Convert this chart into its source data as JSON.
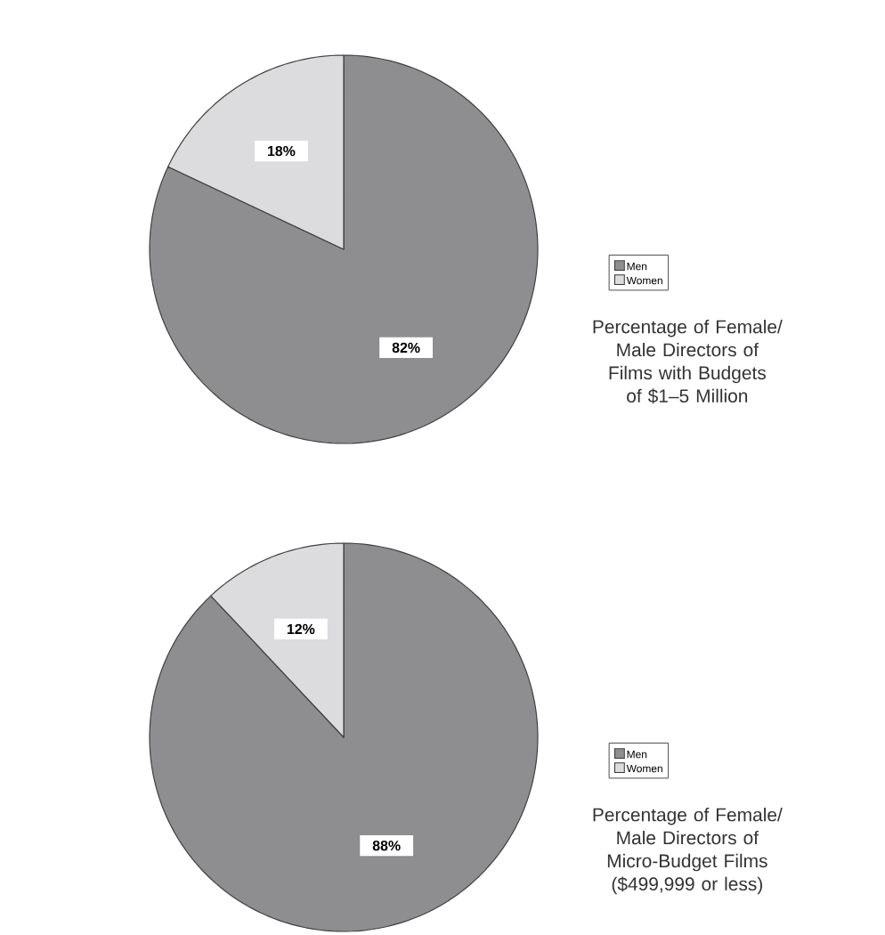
{
  "chart_data": [
    {
      "type": "pie",
      "title": "Percentage of Female/ Male Directors of Films with Budgets of $1–5 Million",
      "categories": [
        "Men",
        "Women"
      ],
      "values": [
        82,
        18
      ],
      "colors": [
        "#8e8e90",
        "#dcdcde"
      ],
      "value_labels": [
        "82%",
        "18%"
      ],
      "legend": "right"
    },
    {
      "type": "pie",
      "title": "Percentage of Female/ Male Directors of Micro-Budget Films ($499,999 or less)",
      "categories": [
        "Men",
        "Women"
      ],
      "values": [
        88,
        12
      ],
      "colors": [
        "#8e8e90",
        "#dcdcde"
      ],
      "value_labels": [
        "88%",
        "12%"
      ],
      "legend": "right"
    }
  ]
}
